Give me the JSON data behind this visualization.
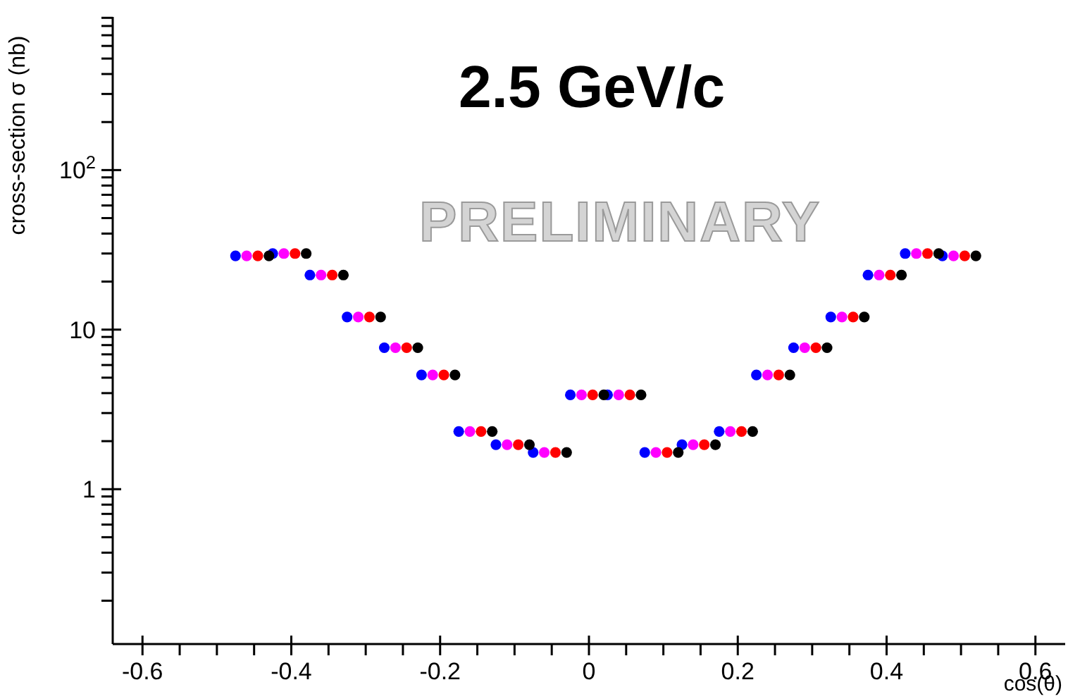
{
  "chart_data": {
    "type": "scatter",
    "title": "2.5 GeV/c",
    "xlabel": "cos(θ)",
    "ylabel": "cross-section σ (nb)",
    "annotations": [
      "PRELIMINARY"
    ],
    "log": "y",
    "grid": false,
    "legend": false,
    "marker": "circle",
    "xlim": [
      -0.64,
      0.64
    ],
    "ylim": [
      0.107,
      912
    ],
    "xticks": [
      -0.6,
      {
        "value": -0.55,
        "label": null
      },
      {
        "value": -0.5,
        "label": null
      },
      {
        "value": -0.45,
        "label": null
      },
      -0.4,
      {
        "value": -0.35,
        "label": null
      },
      {
        "value": -0.3,
        "label": null
      },
      {
        "value": -0.25,
        "label": null
      },
      -0.2,
      {
        "value": -0.15,
        "label": null
      },
      {
        "value": -0.1,
        "label": null
      },
      {
        "value": -0.05,
        "label": null
      },
      0,
      {
        "value": 0.05,
        "label": null
      },
      {
        "value": 0.1,
        "label": null
      },
      {
        "value": 0.15,
        "label": null
      },
      0.2,
      {
        "value": 0.25,
        "label": null
      },
      {
        "value": 0.3,
        "label": null
      },
      {
        "value": 0.35,
        "label": null
      },
      0.4,
      {
        "value": 0.45,
        "label": null
      },
      {
        "value": 0.5,
        "label": null
      },
      {
        "value": 0.55,
        "label": null
      },
      0.6
    ],
    "yticks": [
      {
        "value": 0.2,
        "label": null
      },
      {
        "value": 0.3,
        "label": null
      },
      {
        "value": 0.4,
        "label": null
      },
      {
        "value": 0.5,
        "label": null
      },
      {
        "value": 0.6,
        "label": null
      },
      {
        "value": 0.7,
        "label": null
      },
      {
        "value": 0.8,
        "label": null
      },
      {
        "value": 0.9,
        "label": null
      },
      1,
      {
        "value": 2,
        "label": null
      },
      {
        "value": 3,
        "label": null
      },
      {
        "value": 4,
        "label": null
      },
      {
        "value": 5,
        "label": null
      },
      {
        "value": 6,
        "label": null
      },
      {
        "value": 7,
        "label": null
      },
      {
        "value": 8,
        "label": null
      },
      {
        "value": 9,
        "label": null
      },
      10,
      {
        "value": 20,
        "label": null
      },
      {
        "value": 30,
        "label": null
      },
      {
        "value": 40,
        "label": null
      },
      {
        "value": 50,
        "label": null
      },
      {
        "value": 60,
        "label": null
      },
      {
        "value": 70,
        "label": null
      },
      {
        "value": 80,
        "label": null
      },
      {
        "value": 90,
        "label": null
      },
      {
        "value": 100,
        "label": "10$^{2}$"
      },
      {
        "value": 200,
        "label": null
      },
      {
        "value": 300,
        "label": null
      },
      {
        "value": 400,
        "label": null
      },
      {
        "value": 500,
        "label": null
      },
      {
        "value": 600,
        "label": null
      },
      {
        "value": 700,
        "label": null
      },
      {
        "value": 800,
        "label": null
      },
      {
        "value": 900,
        "label": null
      }
    ],
    "series": [
      {
        "color": "#0000ff",
        "x": [
          -0.475,
          -0.425,
          -0.375,
          -0.325,
          -0.275,
          -0.225,
          -0.175,
          -0.125,
          -0.075,
          -0.025,
          0.025,
          0.075,
          0.125,
          0.175,
          0.225,
          0.275,
          0.325,
          0.375,
          0.425,
          0.475
        ],
        "values": [
          29,
          30,
          22,
          12,
          7.7,
          5.2,
          2.3,
          1.9,
          1.7,
          3.9,
          3.9,
          1.7,
          1.9,
          2.3,
          5.2,
          7.7,
          12,
          22,
          30,
          29
        ]
      },
      {
        "color": "#ff00ff",
        "x": [
          -0.46,
          -0.41,
          -0.36,
          -0.31,
          -0.26,
          -0.21,
          -0.16,
          -0.11,
          -0.06,
          -0.01,
          0.04,
          0.09,
          0.14,
          0.19,
          0.24,
          0.29,
          0.34,
          0.39,
          0.44,
          0.49
        ],
        "values": [
          29,
          30,
          22,
          12,
          7.7,
          5.2,
          2.3,
          1.9,
          1.7,
          3.9,
          3.9,
          1.7,
          1.9,
          2.3,
          5.2,
          7.7,
          12,
          22,
          30,
          29
        ]
      },
      {
        "color": "#ff0000",
        "x": [
          -0.445,
          -0.395,
          -0.345,
          -0.295,
          -0.245,
          -0.195,
          -0.145,
          -0.095,
          -0.045,
          0.005,
          0.055,
          0.105,
          0.155,
          0.205,
          0.255,
          0.305,
          0.355,
          0.405,
          0.455,
          0.505
        ],
        "values": [
          29,
          30,
          22,
          12,
          7.7,
          5.2,
          2.3,
          1.9,
          1.7,
          3.9,
          3.9,
          1.7,
          1.9,
          2.3,
          5.2,
          7.7,
          12,
          22,
          30,
          29
        ]
      },
      {
        "color": "#000000",
        "x": [
          -0.43,
          -0.38,
          -0.33,
          -0.28,
          -0.23,
          -0.18,
          -0.13,
          -0.08,
          -0.03,
          0.02,
          0.07,
          0.12,
          0.17,
          0.22,
          0.27,
          0.32,
          0.37,
          0.42,
          0.47,
          0.52
        ],
        "values": [
          29,
          30,
          22,
          12,
          7.7,
          5.2,
          2.3,
          1.9,
          1.7,
          3.9,
          3.9,
          1.7,
          1.9,
          2.3,
          5.2,
          7.7,
          12,
          22,
          30,
          29
        ]
      }
    ]
  }
}
